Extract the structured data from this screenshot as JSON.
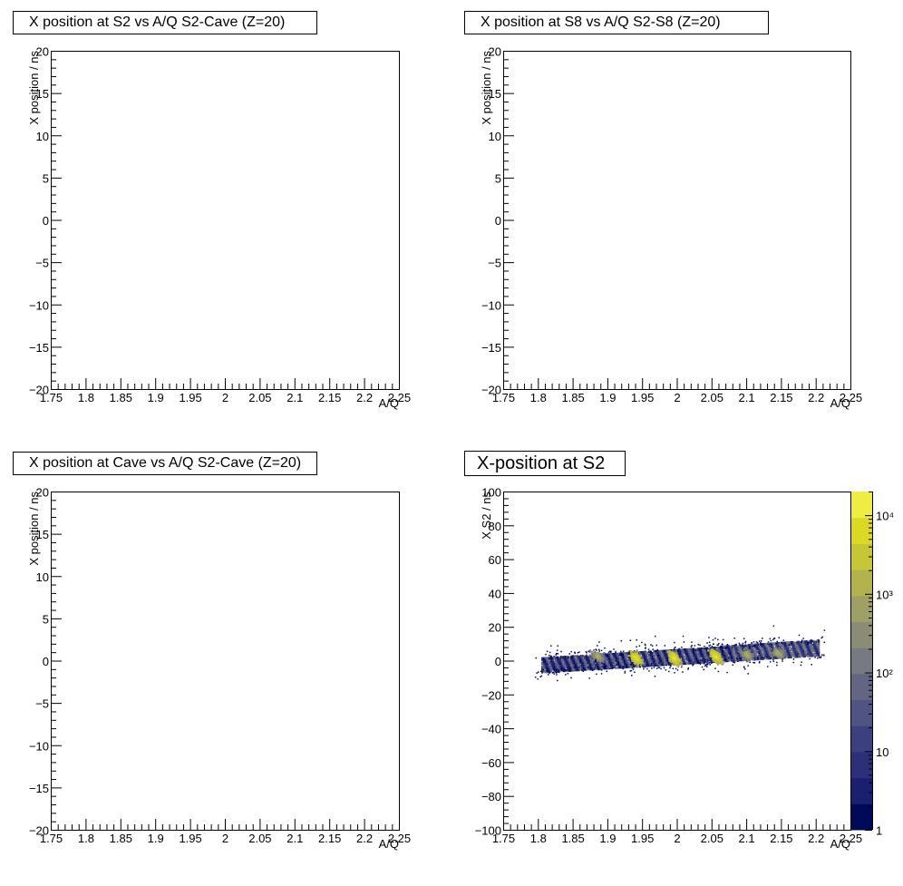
{
  "chart_data": [
    {
      "type": "heatmap",
      "title": "X position at S2 vs A/Q S2-Cave (Z=20)",
      "xlabel": "A/Q",
      "ylabel": "X position / ns",
      "xlim": [
        1.75,
        2.25
      ],
      "ylim": [
        -20,
        20
      ],
      "xticks": [
        "1.75",
        "1.8",
        "1.85",
        "1.9",
        "1.95",
        "2",
        "2.05",
        "2.1",
        "2.15",
        "2.2",
        "2.25"
      ],
      "yticks": [
        "−20",
        "−15",
        "−10",
        "−5",
        "0",
        "5",
        "10",
        "15",
        "20"
      ],
      "grid": false,
      "empty": true
    },
    {
      "type": "heatmap",
      "title": "X position at S8 vs A/Q S2-S8 (Z=20)",
      "xlabel": "A/Q",
      "ylabel": "X position / ns",
      "xlim": [
        1.75,
        2.25
      ],
      "ylim": [
        -20,
        20
      ],
      "xticks": [
        "1.75",
        "1.8",
        "1.85",
        "1.9",
        "1.95",
        "2",
        "2.05",
        "2.1",
        "2.15",
        "2.2",
        "2.25"
      ],
      "yticks": [
        "−20",
        "−15",
        "−10",
        "−5",
        "0",
        "5",
        "10",
        "15",
        "20"
      ],
      "grid": false,
      "empty": true
    },
    {
      "type": "heatmap",
      "title": "X position at Cave vs A/Q S2-Cave (Z=20)",
      "xlabel": "A/Q",
      "ylabel": "X position / ns",
      "xlim": [
        1.75,
        2.25
      ],
      "ylim": [
        -20,
        20
      ],
      "xticks": [
        "1.75",
        "1.8",
        "1.85",
        "1.9",
        "1.95",
        "2",
        "2.05",
        "2.1",
        "2.15",
        "2.2",
        "2.25"
      ],
      "yticks": [
        "−20",
        "−15",
        "−10",
        "−5",
        "0",
        "5",
        "10",
        "15",
        "20"
      ],
      "grid": false,
      "empty": true
    },
    {
      "type": "heatmap",
      "title": "X-position at S2",
      "xlabel": "A/Q",
      "ylabel": "X S2 / ns",
      "xlim": [
        1.75,
        2.25
      ],
      "ylim": [
        -100,
        100
      ],
      "xticks": [
        "1.75",
        "1.8",
        "1.85",
        "1.9",
        "1.95",
        "2",
        "2.05",
        "2.1",
        "2.15",
        "2.2",
        "2.25"
      ],
      "yticks": [
        "−100",
        "−80",
        "−60",
        "−40",
        "−20",
        "0",
        "20",
        "40",
        "60",
        "80",
        "100"
      ],
      "grid": false,
      "empty": false,
      "zscale": "log",
      "zlim": [
        1,
        20000
      ],
      "colorbar_ticks": [
        "1",
        "10",
        "10²",
        "10³",
        "10⁴"
      ],
      "colormap": [
        "#000a57",
        "#1a1f70",
        "#2b3078",
        "#3d4080",
        "#505483",
        "#636683",
        "#777a80",
        "#8b8c76",
        "#9fa066",
        "#b3b34e",
        "#c7c636",
        "#dbd925",
        "#eded44"
      ],
      "band": {
        "x_range": [
          1.805,
          2.205
        ],
        "y_center_at_min": -2,
        "y_center_at_max": 8,
        "half_width": 4.5,
        "halo_half_width": 12
      },
      "peaks": [
        {
          "aq": 1.94,
          "y": 2,
          "intensity": "high"
        },
        {
          "aq": 1.995,
          "y": 2,
          "intensity": "high"
        },
        {
          "aq": 2.055,
          "y": 3,
          "intensity": "high"
        },
        {
          "aq": 1.885,
          "y": 3,
          "intensity": "low"
        },
        {
          "aq": 2.1,
          "y": 4,
          "intensity": "low"
        },
        {
          "aq": 2.145,
          "y": 5,
          "intensity": "low"
        }
      ]
    }
  ]
}
